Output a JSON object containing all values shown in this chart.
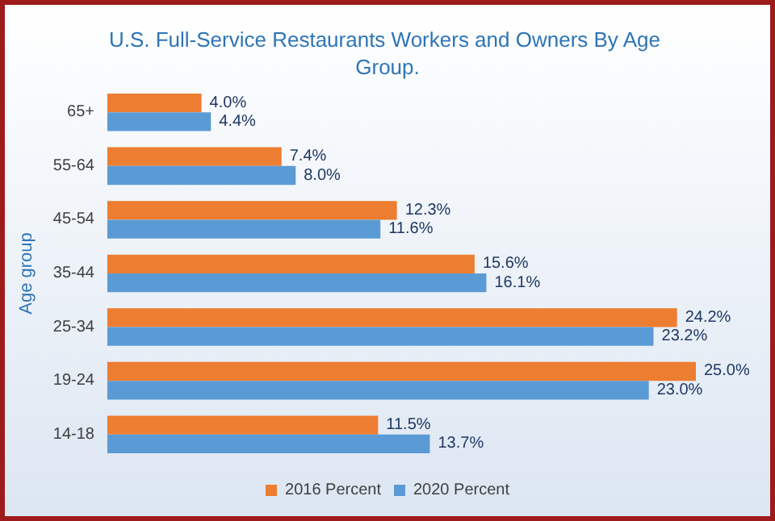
{
  "chart_data": {
    "type": "bar",
    "orientation": "horizontal",
    "title": "U.S. Full-Service Restaurants Workers and Owners By Age Group.",
    "ylabel": "Age group",
    "categories": [
      "65+",
      "55-64",
      "45-54",
      "35-44",
      "25-34",
      "19-24",
      "14-18"
    ],
    "series": [
      {
        "name": "2016 Percent",
        "color": "#ed7d31",
        "values": [
          4.0,
          7.4,
          12.3,
          15.6,
          24.2,
          25.0,
          11.5
        ],
        "value_labels": [
          "4.0%",
          "7.4%",
          "12.3%",
          "15.6%",
          "24.2%",
          "25.0%",
          "11.5%"
        ]
      },
      {
        "name": "2020 Percent",
        "color": "#5b9bd5",
        "values": [
          4.4,
          8.0,
          11.6,
          16.1,
          23.2,
          23.0,
          13.7
        ],
        "value_labels": [
          "4.4%",
          "8.0%",
          "11.6%",
          "16.1%",
          "23.2%",
          "23.0%",
          "13.7%"
        ]
      }
    ],
    "legend": "bottom"
  }
}
